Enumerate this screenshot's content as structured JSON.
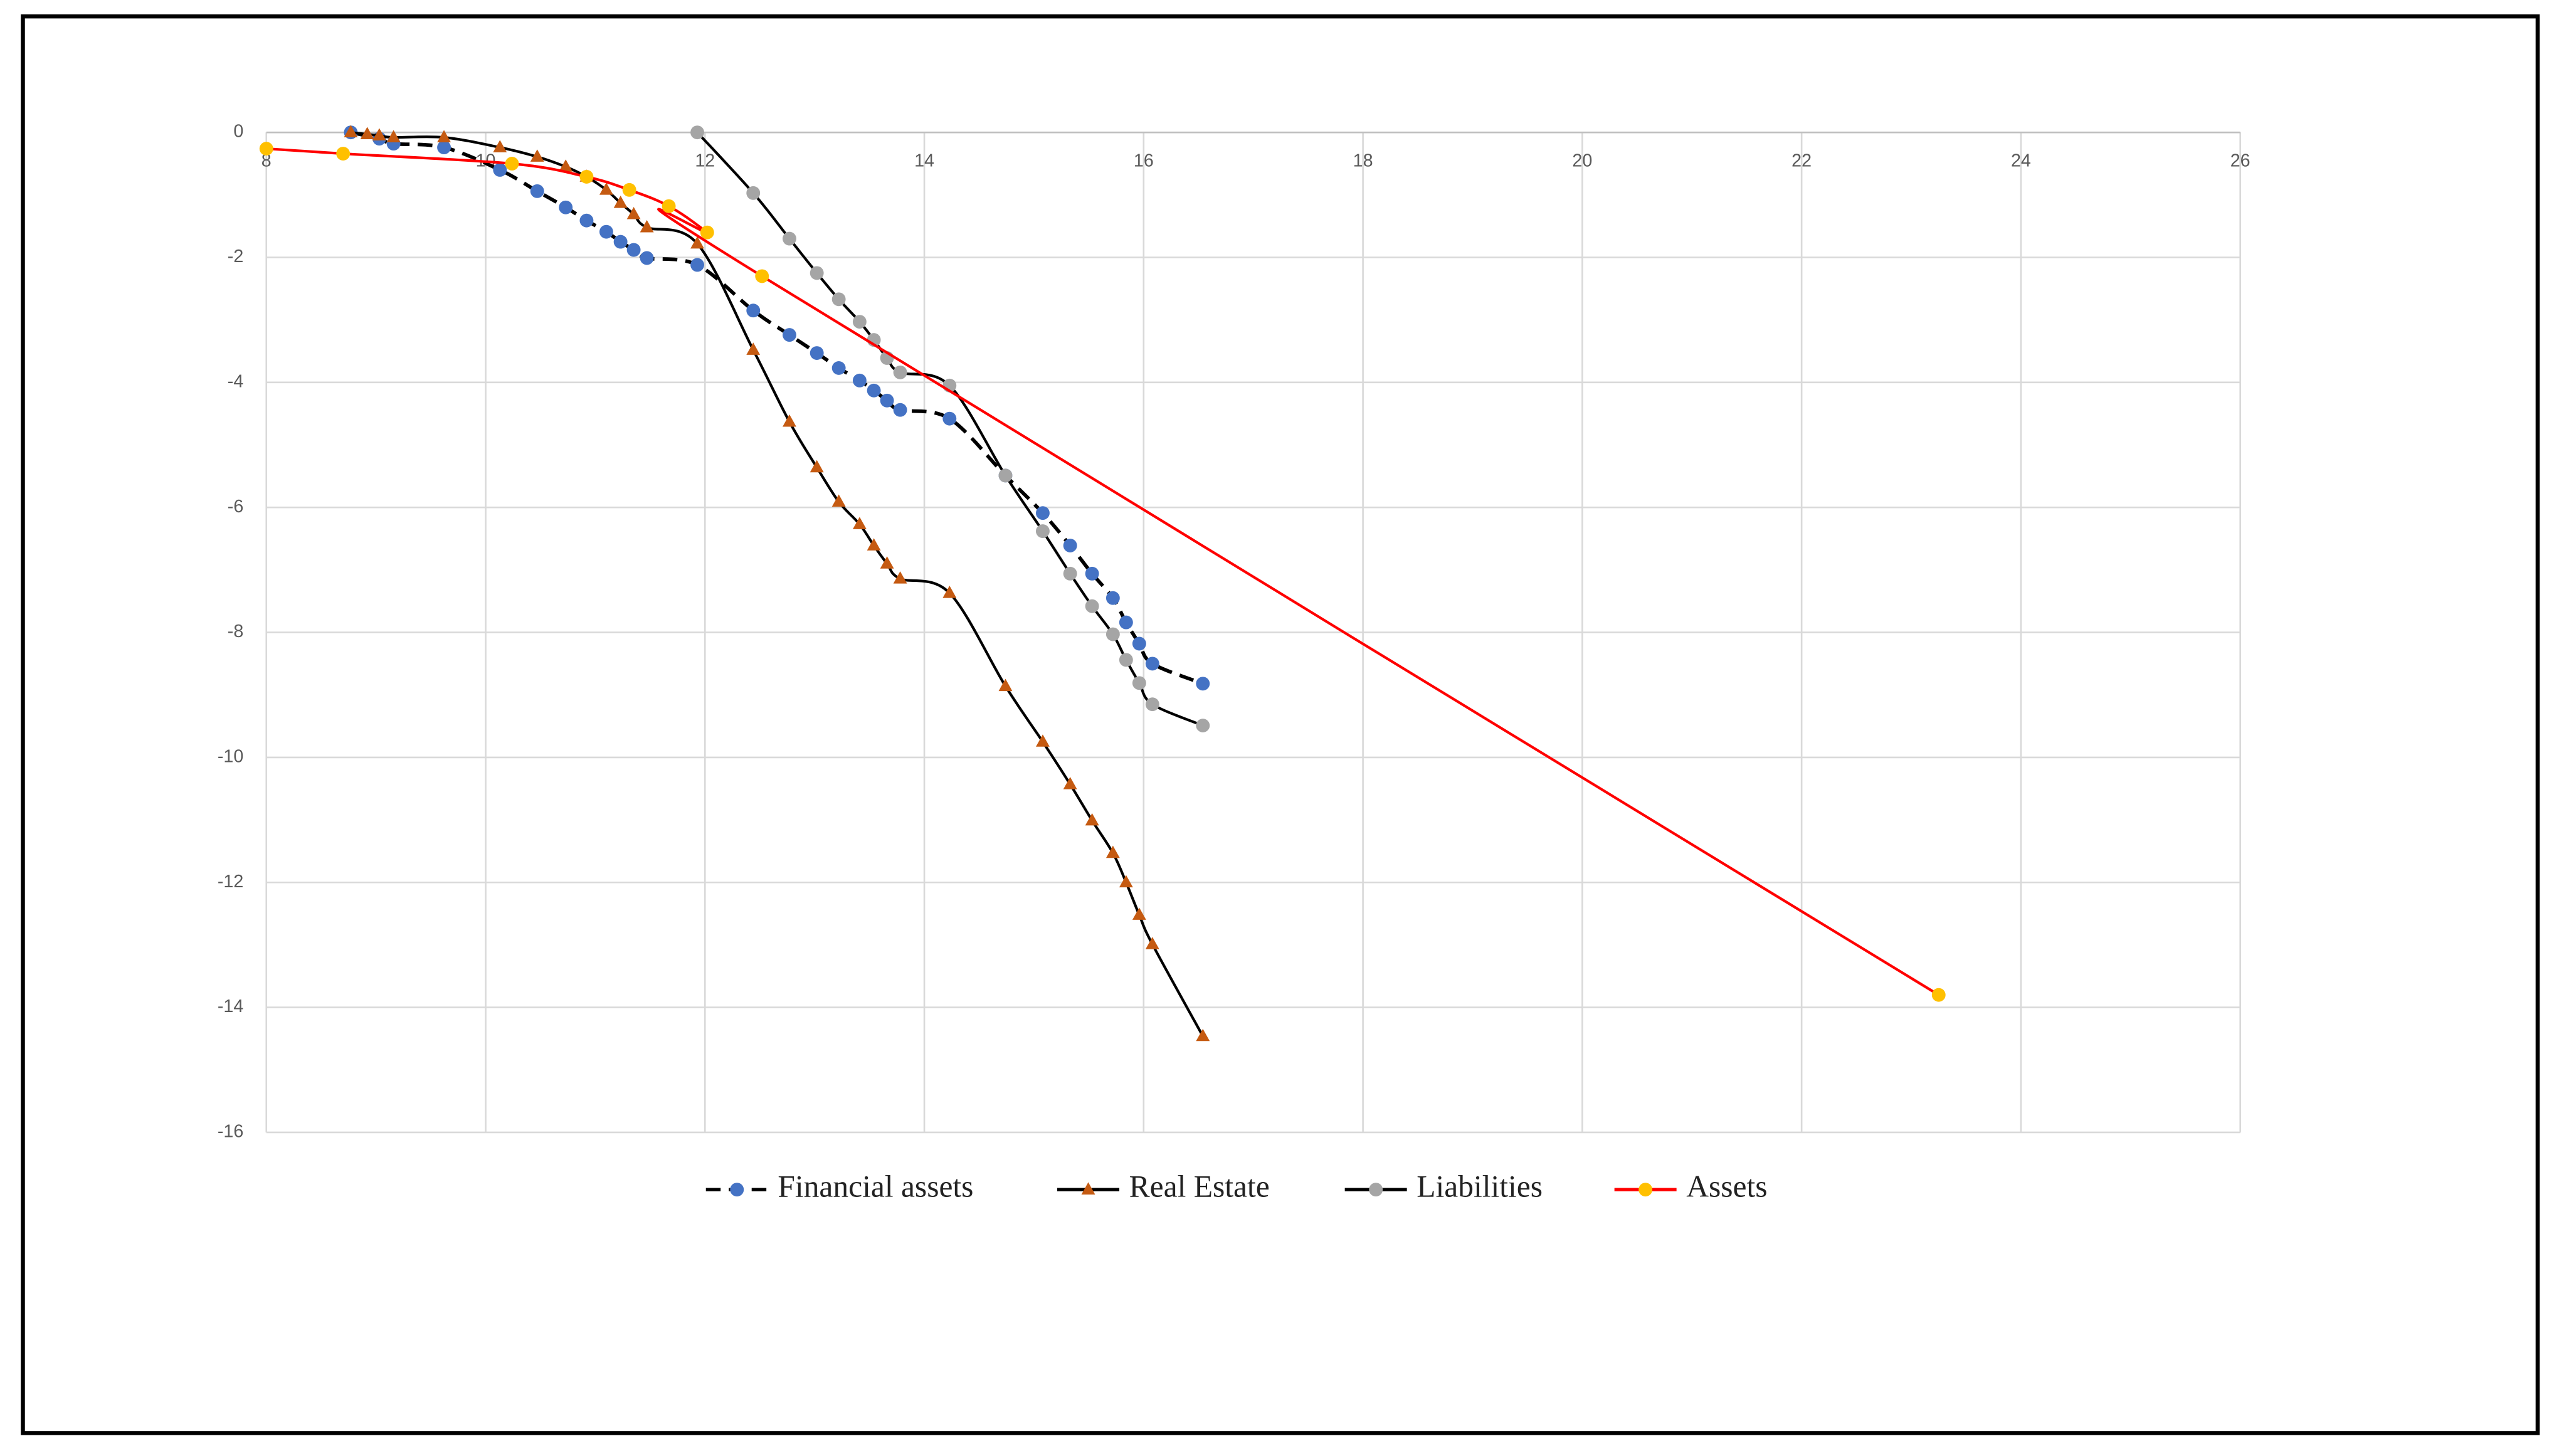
{
  "chart_data": {
    "type": "line",
    "smooth": true,
    "grid": true,
    "legend": "bottom",
    "xlim": [
      8,
      26
    ],
    "xticks": [
      8,
      10,
      12,
      14,
      16,
      18,
      20,
      22,
      24,
      26
    ],
    "ylim": [
      -16,
      0
    ],
    "yticks": [
      0,
      -2,
      -4,
      -6,
      -8,
      -10,
      -12,
      -14,
      -16
    ],
    "series": [
      {
        "name": "Financial assets",
        "line_color": "#000000",
        "color": "#4472c4",
        "marker": "circle",
        "dashed": true,
        "x": [
          8.77,
          9.03,
          9.16,
          9.62,
          10.13,
          10.47,
          10.73,
          10.92,
          11.1,
          11.23,
          11.35,
          11.47,
          11.93,
          12.44,
          12.77,
          13.02,
          13.22,
          13.41,
          13.54,
          13.66,
          13.78,
          14.23,
          14.74,
          15.08,
          15.33,
          15.53,
          15.72,
          15.84,
          15.96,
          16.08,
          16.54
        ],
        "values": [
          0,
          -0.1,
          -0.18,
          -0.24,
          -0.6,
          -0.94,
          -1.2,
          -1.41,
          -1.59,
          -1.75,
          -1.88,
          -2.01,
          -2.12,
          -2.85,
          -3.24,
          -3.53,
          -3.77,
          -3.97,
          -4.13,
          -4.29,
          -4.44,
          -4.58,
          -5.49,
          -6.09,
          -6.61,
          -7.06,
          -7.45,
          -7.84,
          -8.18,
          -8.5,
          -8.82
        ]
      },
      {
        "name": "Real Estate",
        "line_color": "#000000",
        "color": "#c55a11",
        "marker": "triangle",
        "dashed": false,
        "x": [
          8.77,
          8.92,
          9.03,
          9.16,
          9.62,
          10.13,
          10.47,
          10.73,
          10.92,
          11.1,
          11.23,
          11.35,
          11.47,
          11.93,
          12.44,
          12.77,
          13.02,
          13.22,
          13.41,
          13.54,
          13.66,
          13.78,
          14.23,
          14.74,
          15.08,
          15.33,
          15.53,
          15.72,
          15.84,
          15.96,
          16.08,
          16.54
        ],
        "values": [
          0,
          -0.03,
          -0.05,
          -0.08,
          -0.08,
          -0.24,
          -0.39,
          -0.55,
          -0.71,
          -0.92,
          -1.13,
          -1.31,
          -1.52,
          -1.78,
          -3.48,
          -4.63,
          -5.36,
          -5.91,
          -6.27,
          -6.61,
          -6.9,
          -7.14,
          -7.37,
          -8.86,
          -9.75,
          -10.43,
          -11.01,
          -11.53,
          -12.0,
          -12.52,
          -12.99,
          -14.46
        ]
      },
      {
        "name": "Liabilities",
        "line_color": "#000000",
        "color": "#a5a5a5",
        "marker": "circle",
        "dashed": false,
        "x": [
          11.93,
          12.44,
          12.77,
          13.02,
          13.22,
          13.41,
          13.54,
          13.66,
          13.78,
          14.23,
          14.74,
          15.08,
          15.33,
          15.53,
          15.72,
          15.84,
          15.96,
          16.08,
          16.54
        ],
        "values": [
          0,
          -0.97,
          -1.7,
          -2.25,
          -2.67,
          -3.03,
          -3.32,
          -3.61,
          -3.84,
          -4.05,
          -5.49,
          -6.38,
          -7.06,
          -7.58,
          -8.03,
          -8.44,
          -8.81,
          -9.15,
          -9.49
        ]
      },
      {
        "name": "Assets",
        "line_color": "#ff0000",
        "color": "#ffc000",
        "marker": "circle",
        "dashed": false,
        "x": [
          8.0,
          8.7,
          10.24,
          10.92,
          11.31,
          11.67,
          12.02,
          12.52,
          23.25
        ],
        "values": [
          -0.26,
          -0.34,
          -0.5,
          -0.71,
          -0.92,
          -1.18,
          -1.6,
          -2.3,
          -13.8
        ]
      }
    ]
  }
}
